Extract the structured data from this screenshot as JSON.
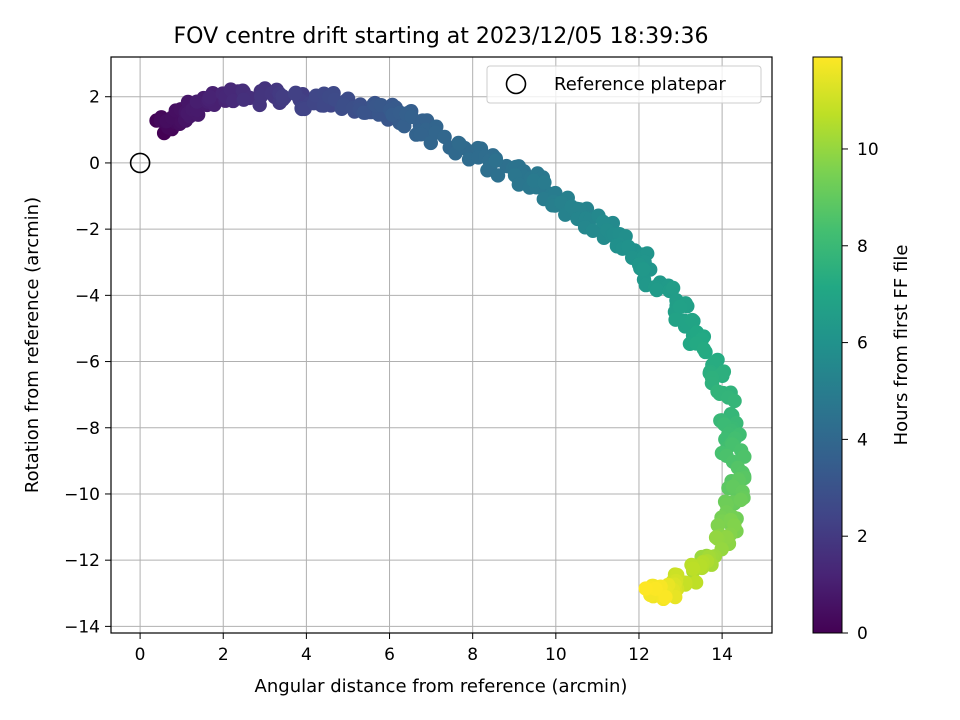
{
  "chart_data": {
    "type": "scatter",
    "title": "FOV centre drift starting at 2023/12/05 18:39:36",
    "xlabel": "Angular distance from reference (arcmin)",
    "ylabel": "Rotation from reference (arcmin)",
    "xlim": [
      -0.7,
      15.2
    ],
    "ylim": [
      -14.2,
      3.2
    ],
    "xticks": [
      0,
      2,
      4,
      6,
      8,
      10,
      12,
      14
    ],
    "yticks": [
      2,
      0,
      -2,
      -4,
      -6,
      -8,
      -10,
      -12,
      -14
    ],
    "xtick_labels": [
      "0",
      "2",
      "4",
      "6",
      "8",
      "10",
      "12",
      "14"
    ],
    "ytick_labels": [
      "2",
      "0",
      "−2",
      "−4",
      "−6",
      "−8",
      "−10",
      "−12",
      "−14"
    ],
    "grid": true,
    "colormap": "viridis",
    "colorbar": {
      "label": "Hours from first FF file",
      "range": [
        0,
        11.9
      ],
      "ticks": [
        0,
        2,
        4,
        6,
        8,
        10
      ],
      "tick_labels": [
        "0",
        "2",
        "4",
        "6",
        "8",
        "10"
      ]
    },
    "legend": {
      "position": "top-right",
      "label": "Reference platepar"
    },
    "reference_point": {
      "x": 0,
      "y": 0
    },
    "path": [
      [
        0.5,
        1.0,
        0.0
      ],
      [
        0.7,
        1.3,
        0.3
      ],
      [
        0.9,
        1.4,
        0.5
      ],
      [
        1.3,
        1.7,
        0.8
      ],
      [
        1.8,
        1.9,
        1.1
      ],
      [
        2.4,
        2.0,
        1.4
      ],
      [
        3.0,
        2.0,
        1.8
      ],
      [
        3.6,
        2.0,
        2.1
      ],
      [
        4.2,
        1.8,
        2.4
      ],
      [
        4.8,
        1.9,
        2.7
      ],
      [
        5.4,
        1.6,
        3.0
      ],
      [
        6.0,
        1.5,
        3.3
      ],
      [
        6.5,
        1.3,
        3.6
      ],
      [
        6.9,
        1.0,
        3.8
      ],
      [
        7.8,
        0.4,
        4.1
      ],
      [
        8.5,
        0.0,
        4.3
      ],
      [
        9.1,
        -0.4,
        4.6
      ],
      [
        9.6,
        -0.6,
        4.8
      ],
      [
        10.2,
        -1.2,
        5.1
      ],
      [
        10.8,
        -1.6,
        5.4
      ],
      [
        11.3,
        -2.1,
        5.7
      ],
      [
        11.8,
        -2.7,
        6.0
      ],
      [
        12.3,
        -3.4,
        6.3
      ],
      [
        12.8,
        -4.1,
        6.6
      ],
      [
        13.2,
        -4.8,
        6.9
      ],
      [
        13.6,
        -5.6,
        7.2
      ],
      [
        13.9,
        -6.5,
        7.5
      ],
      [
        14.1,
        -7.4,
        7.8
      ],
      [
        14.2,
        -8.3,
        8.2
      ],
      [
        14.3,
        -9.2,
        8.6
      ],
      [
        14.3,
        -10.0,
        9.0
      ],
      [
        14.2,
        -10.7,
        9.4
      ],
      [
        14.0,
        -11.3,
        9.8
      ],
      [
        13.6,
        -11.9,
        10.2
      ],
      [
        13.2,
        -12.4,
        10.7
      ],
      [
        12.9,
        -12.8,
        11.2
      ],
      [
        12.6,
        -13.0,
        11.6
      ],
      [
        12.4,
        -12.9,
        11.9
      ]
    ]
  }
}
